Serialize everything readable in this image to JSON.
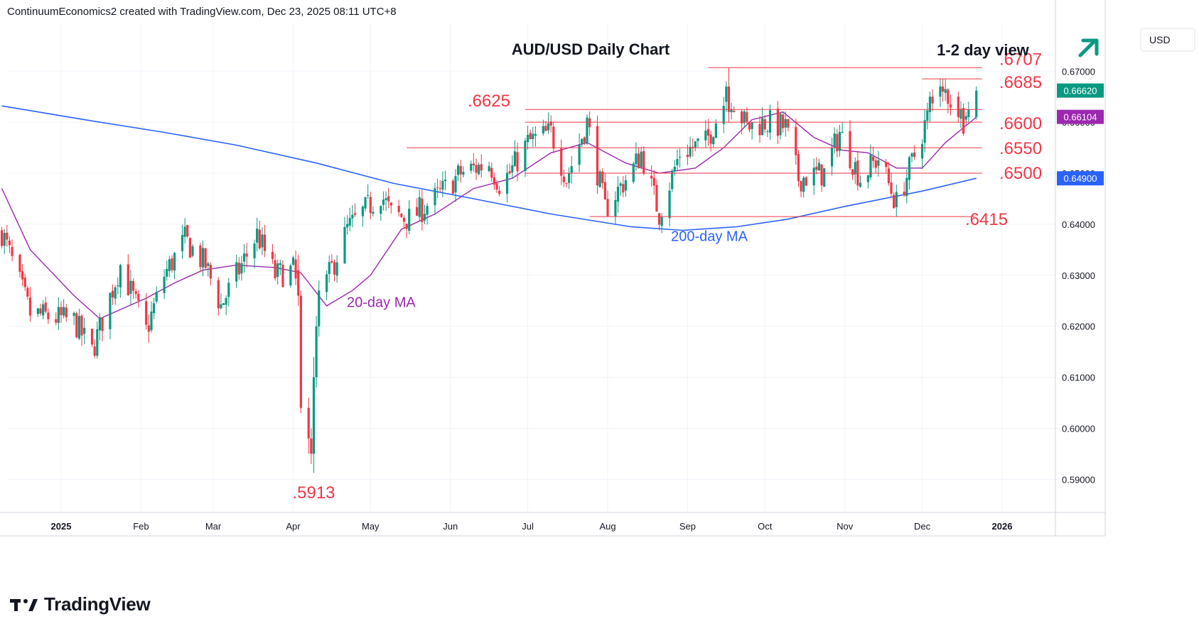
{
  "header": {
    "text": "ContinuumEconomics2 created with TradingView.com, Dec 23, 2025 08:11 UTC+8"
  },
  "footer": {
    "brand": "TradingView",
    "logo_icon": "tradingview-logo-icon"
  },
  "colors": {
    "up": "#089981",
    "down": "#f23645",
    "level": "#f23645",
    "level_label": "#f23645",
    "ma20": "#9c27b0",
    "ma200": "#2962ff",
    "grid": "#f0f3fa",
    "axis_text": "#131722",
    "last_price_bg": "#089981",
    "ma20_badge_bg": "#9c27b0",
    "ma200_badge_bg": "#2962ff",
    "arrow": "#089981"
  },
  "chart_data": {
    "type": "candlestick",
    "title": "AUD/USD Daily Chart",
    "outlook": "1-2 day view",
    "outlook_icon": "arrow-up-right-icon",
    "currency": "USD",
    "yticks": [
      "0.67000",
      "0.66000",
      "0.65000",
      "0.64000",
      "0.63000",
      "0.62000",
      "0.61000",
      "0.60000",
      "0.59000"
    ],
    "xticks": [
      "2025",
      "Feb",
      "Mar",
      "Apr",
      "May",
      "Jun",
      "Jul",
      "Aug",
      "Sep",
      "Oct",
      "Nov",
      "Dec",
      "2026"
    ],
    "ylim": [
      0.5835,
      0.6795
    ],
    "last_price": {
      "value": 0.6662,
      "label": "0.66620"
    },
    "ma20_value": {
      "value": 0.66104,
      "label": "0.66104"
    },
    "ma200_value": {
      "value": 0.649,
      "label": "0.64900"
    },
    "levels": [
      {
        "label": ".6707",
        "value": 0.6707,
        "from": "2025-09-09",
        "to": "2025-12-22"
      },
      {
        "label": ".6685",
        "value": 0.6685,
        "from": "2025-12-01",
        "to": "2025-12-22"
      },
      {
        "label": ".6625",
        "value": 0.6625,
        "from": "2025-06-30",
        "to": "2025-12-22"
      },
      {
        "label": ".6600",
        "value": 0.66,
        "from": "2025-06-30",
        "to": "2025-12-22"
      },
      {
        "label": ".6550",
        "value": 0.655,
        "from": "2025-05-15",
        "to": "2025-12-22"
      },
      {
        "label": ".6500",
        "value": 0.65,
        "from": "2025-06-30",
        "to": "2025-12-22"
      },
      {
        "label": ".6415",
        "value": 0.6415,
        "from": "2025-07-25",
        "to": "2025-12-19"
      }
    ],
    "annotations": [
      {
        "text": ".5913",
        "date": "2025-04-09",
        "value": 0.5913
      },
      {
        "text": "20-day MA",
        "date": "2025-05-01",
        "value": 0.6245
      },
      {
        "text": "200-day MA",
        "date": "2025-09-15",
        "value": 0.6395
      }
    ],
    "anchors": [
      [
        "2024-12-09",
        0.6385
      ],
      [
        "2024-12-20",
        0.6225
      ],
      [
        "2025-01-06",
        0.621
      ],
      [
        "2025-01-13",
        0.615
      ],
      [
        "2025-01-24",
        0.632
      ],
      [
        "2025-02-03",
        0.619
      ],
      [
        "2025-02-10",
        0.63
      ],
      [
        "2025-02-18",
        0.637
      ],
      [
        "2025-02-26",
        0.632
      ],
      [
        "2025-03-04",
        0.624
      ],
      [
        "2025-03-10",
        0.63
      ],
      [
        "2025-03-18",
        0.638
      ],
      [
        "2025-03-25",
        0.63
      ],
      [
        "2025-04-01",
        0.631
      ],
      [
        "2025-04-04",
        0.624
      ],
      [
        "2025-04-08",
        0.596
      ],
      [
        "2025-04-11",
        0.625
      ],
      [
        "2025-04-22",
        0.639
      ],
      [
        "2025-05-05",
        0.646
      ],
      [
        "2025-05-09",
        0.642
      ],
      [
        "2025-05-16",
        0.641
      ],
      [
        "2025-05-26",
        0.645
      ],
      [
        "2025-06-05",
        0.65
      ],
      [
        "2025-06-16",
        0.652
      ],
      [
        "2025-06-20",
        0.648
      ],
      [
        "2025-06-24",
        0.65
      ],
      [
        "2025-07-01",
        0.656
      ],
      [
        "2025-07-10",
        0.658
      ],
      [
        "2025-07-16",
        0.649
      ],
      [
        "2025-07-24",
        0.66
      ],
      [
        "2025-07-31",
        0.643
      ],
      [
        "2025-08-11",
        0.651
      ],
      [
        "2025-08-14",
        0.654
      ],
      [
        "2025-08-21",
        0.642
      ],
      [
        "2025-08-29",
        0.654
      ],
      [
        "2025-09-08",
        0.656
      ],
      [
        "2025-09-17",
        0.666
      ],
      [
        "2025-09-24",
        0.659
      ],
      [
        "2025-10-01",
        0.66
      ],
      [
        "2025-10-09",
        0.659
      ],
      [
        "2025-10-14",
        0.649
      ],
      [
        "2025-10-24",
        0.65
      ],
      [
        "2025-10-30",
        0.658
      ],
      [
        "2025-11-07",
        0.649
      ],
      [
        "2025-11-14",
        0.653
      ],
      [
        "2025-11-21",
        0.644
      ],
      [
        "2025-11-27",
        0.652
      ],
      [
        "2025-12-03",
        0.661
      ],
      [
        "2025-12-10",
        0.666
      ],
      [
        "2025-12-17",
        0.6605
      ],
      [
        "2025-12-22",
        0.6662
      ]
    ],
    "candles": [
      [
        "2025-04-03",
        0.631,
        0.634,
        0.624,
        0.626
      ],
      [
        "2025-04-04",
        0.626,
        0.627,
        0.603,
        0.604
      ],
      [
        "2025-04-07",
        0.604,
        0.606,
        0.595,
        0.598
      ],
      [
        "2025-04-08",
        0.598,
        0.6,
        0.593,
        0.595
      ],
      [
        "2025-04-09",
        0.595,
        0.614,
        0.5913,
        0.61
      ],
      [
        "2025-04-10",
        0.61,
        0.622,
        0.608,
        0.62
      ],
      [
        "2025-04-11",
        0.62,
        0.629,
        0.618,
        0.627
      ],
      [
        "2025-09-16",
        0.664,
        0.668,
        0.662,
        0.667
      ],
      [
        "2025-09-17",
        0.667,
        0.6707,
        0.66,
        0.662
      ],
      [
        "2025-12-04",
        0.662,
        0.666,
        0.66,
        0.665
      ],
      [
        "2025-12-08",
        0.665,
        0.6685,
        0.663,
        0.667
      ],
      [
        "2025-12-09",
        0.667,
        0.6685,
        0.664,
        0.666
      ],
      [
        "2025-12-15",
        0.665,
        0.666,
        0.66,
        0.661
      ],
      [
        "2025-12-18",
        0.6605,
        0.662,
        0.6595,
        0.6612
      ],
      [
        "2025-12-19",
        0.661,
        0.664,
        0.66,
        0.6625
      ],
      [
        "2025-12-22",
        0.661,
        0.667,
        0.6605,
        0.6662
      ]
    ],
    "ma20": [
      [
        "2024-12-09",
        0.647
      ],
      [
        "2024-12-20",
        0.635
      ],
      [
        "2025-01-06",
        0.626
      ],
      [
        "2025-01-16",
        0.6215
      ],
      [
        "2025-02-03",
        0.6255
      ],
      [
        "2025-02-14",
        0.6285
      ],
      [
        "2025-02-25",
        0.631
      ],
      [
        "2025-03-10",
        0.632
      ],
      [
        "2025-03-25",
        0.6315
      ],
      [
        "2025-04-04",
        0.6305
      ],
      [
        "2025-04-14",
        0.624
      ],
      [
        "2025-04-24",
        0.627
      ],
      [
        "2025-05-01",
        0.63
      ],
      [
        "2025-05-13",
        0.639
      ],
      [
        "2025-05-26",
        0.642
      ],
      [
        "2025-06-10",
        0.647
      ],
      [
        "2025-06-25",
        0.649
      ],
      [
        "2025-07-10",
        0.654
      ],
      [
        "2025-07-24",
        0.656
      ],
      [
        "2025-08-08",
        0.652
      ],
      [
        "2025-08-21",
        0.65
      ],
      [
        "2025-09-04",
        0.651
      ],
      [
        "2025-09-15",
        0.655
      ],
      [
        "2025-09-26",
        0.6605
      ],
      [
        "2025-10-08",
        0.662
      ],
      [
        "2025-10-20",
        0.657
      ],
      [
        "2025-10-31",
        0.6545
      ],
      [
        "2025-11-10",
        0.654
      ],
      [
        "2025-11-21",
        0.651
      ],
      [
        "2025-12-01",
        0.651
      ],
      [
        "2025-12-10",
        0.656
      ],
      [
        "2025-12-22",
        0.661
      ]
    ],
    "ma200": [
      [
        "2024-12-09",
        0.6632
      ],
      [
        "2025-01-10",
        0.6605
      ],
      [
        "2025-02-10",
        0.658
      ],
      [
        "2025-03-10",
        0.6555
      ],
      [
        "2025-04-10",
        0.652
      ],
      [
        "2025-05-10",
        0.648
      ],
      [
        "2025-06-10",
        0.645
      ],
      [
        "2025-07-10",
        0.642
      ],
      [
        "2025-08-10",
        0.6395
      ],
      [
        "2025-08-30",
        0.6388
      ],
      [
        "2025-09-20",
        0.6395
      ],
      [
        "2025-10-10",
        0.641
      ],
      [
        "2025-11-01",
        0.6435
      ],
      [
        "2025-12-01",
        0.6465
      ],
      [
        "2025-12-22",
        0.649
      ]
    ]
  }
}
